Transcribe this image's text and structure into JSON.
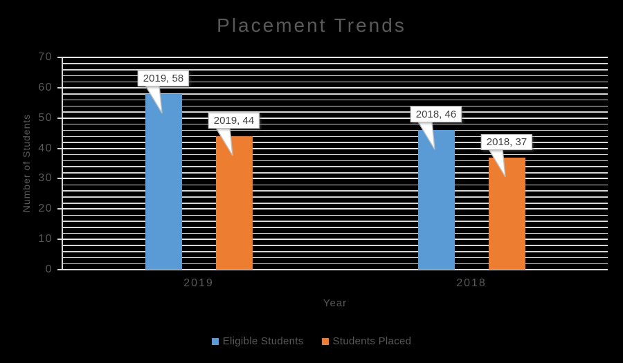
{
  "title": "Placement Trends",
  "colors": {
    "background": "#000000",
    "series_blue": "#5B9BD5",
    "series_orange": "#ED7D31",
    "text_gray": "#595959",
    "axis_line": "#D9D9D9",
    "gridline_major": "#E6E6E6",
    "gridline_minor": "#D7D7D7",
    "callout_background": "#FFFFFF",
    "callout_border": "#BFBFBF",
    "callout_text": "#404040"
  },
  "chart_data": {
    "type": "bar",
    "title": "Placement Trends",
    "xlabel": "Year",
    "ylabel": "Number of Students",
    "categories": [
      "2019",
      "2018"
    ],
    "series": [
      {
        "name": "Eligible Students",
        "color": "#5B9BD5",
        "values": [
          58,
          46
        ],
        "labels": [
          "2019, 58",
          "2018, 46"
        ]
      },
      {
        "name": "Students Placed",
        "color": "#ED7D31",
        "values": [
          44,
          37
        ],
        "labels": [
          "2019, 44",
          "2018, 37"
        ]
      }
    ],
    "data_labels": [
      "2019, 58",
      "2019, 44",
      "2018, 46",
      "2018, 37"
    ],
    "ylim": [
      0,
      70
    ],
    "y_ticks": [
      0,
      10,
      20,
      30,
      40,
      50,
      60,
      70
    ],
    "y_major_step": 10,
    "y_minor_step": 2,
    "grid": "on",
    "legend_position": "bottom"
  },
  "legend": {
    "items": [
      {
        "label": "Eligible Students",
        "color": "#5B9BD5"
      },
      {
        "label": "Students Placed",
        "color": "#ED7D31"
      }
    ]
  }
}
